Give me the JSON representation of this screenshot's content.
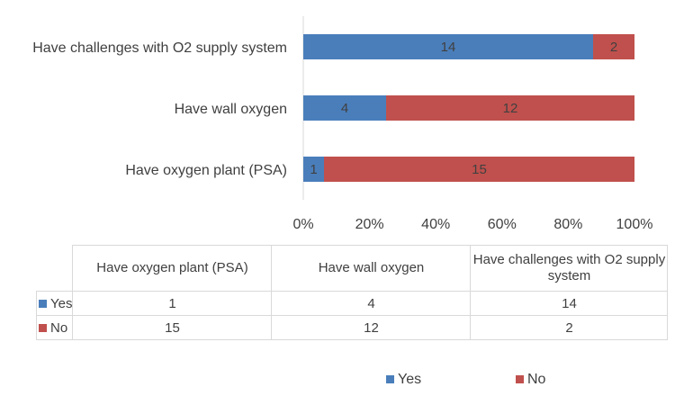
{
  "chart_data": {
    "type": "bar",
    "orientation": "horizontal",
    "stacked": "percent",
    "categories": [
      "Have oxygen plant (PSA)",
      "Have wall oxygen",
      "Have challenges with O2 supply system"
    ],
    "series": [
      {
        "name": "Yes",
        "values": [
          1,
          4,
          14
        ],
        "color": "#4a7ebb"
      },
      {
        "name": "No",
        "values": [
          15,
          12,
          2
        ],
        "color": "#c0504d"
      }
    ],
    "xlim": [
      0,
      100
    ],
    "x_ticks": [
      "0%",
      "20%",
      "40%",
      "60%",
      "80%",
      "100%"
    ],
    "grid": false,
    "legend": "bottom",
    "data_table": true
  },
  "table": {
    "headers": [
      "Have oxygen plant (PSA)",
      "Have wall oxygen",
      "Have challenges with O2 supply system"
    ],
    "rows": [
      {
        "label": "Yes",
        "values": [
          "1",
          "4",
          "14"
        ]
      },
      {
        "label": "No",
        "values": [
          "15",
          "12",
          "2"
        ]
      }
    ]
  },
  "legend": {
    "yes": "Yes",
    "no": "No"
  }
}
